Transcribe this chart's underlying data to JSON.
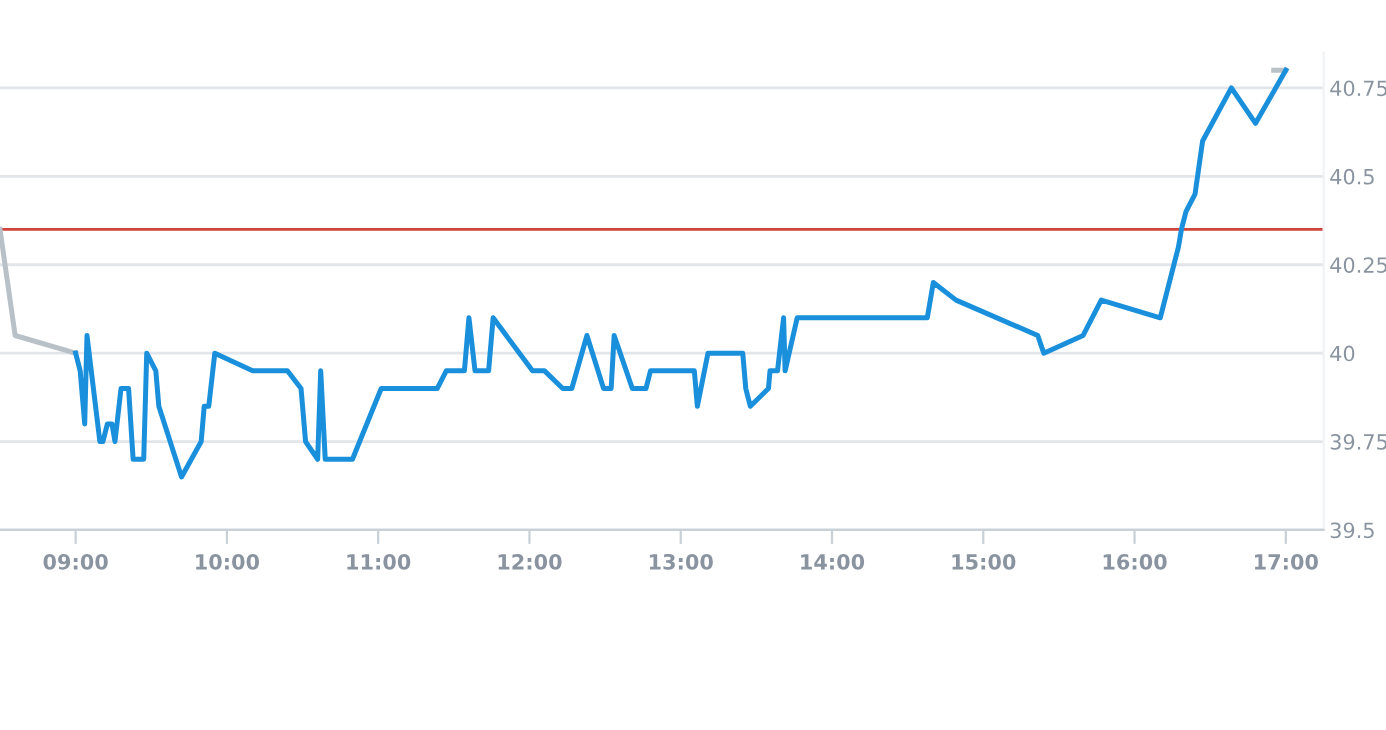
{
  "chart_data": {
    "type": "line",
    "xlim": [
      8.5,
      17.25
    ],
    "ylim": [
      39.5,
      40.85
    ],
    "xticks": [
      {
        "value": 9,
        "label": "09:00"
      },
      {
        "value": 10,
        "label": "10:00"
      },
      {
        "value": 11,
        "label": "11:00"
      },
      {
        "value": 12,
        "label": "12:00"
      },
      {
        "value": 13,
        "label": "13:00"
      },
      {
        "value": 14,
        "label": "14:00"
      },
      {
        "value": 15,
        "label": "15:00"
      },
      {
        "value": 16,
        "label": "16:00"
      },
      {
        "value": 17,
        "label": "17:00"
      }
    ],
    "yticks": [
      39.5,
      39.75,
      40,
      40.25,
      40.5,
      40.75
    ],
    "grid": "y",
    "legend": false,
    "marker": "none",
    "line_style": "solid",
    "ref_lines": [
      {
        "axis": "y",
        "value": 40.35,
        "color": "#d0453a"
      }
    ],
    "series": [
      {
        "color": "#b8c0c8",
        "x": [
          8.5,
          8.6,
          9.0
        ],
        "values": [
          40.35,
          40.05,
          40.0
        ]
      },
      {
        "color": "#b8c0c8",
        "x": [
          16.92,
          17.0
        ],
        "values": [
          40.8,
          40.8
        ]
      },
      {
        "color": "#1a90dc",
        "x": [
          9.0,
          9.03,
          9.06,
          9.075,
          9.16,
          9.18,
          9.21,
          9.24,
          9.26,
          9.3,
          9.35,
          9.38,
          9.45,
          9.47,
          9.53,
          9.55,
          9.7,
          9.83,
          9.85,
          9.88,
          9.92,
          10.17,
          10.4,
          10.49,
          10.52,
          10.6,
          10.62,
          10.65,
          10.83,
          11.02,
          11.39,
          11.45,
          11.57,
          11.6,
          11.64,
          11.73,
          11.76,
          12.02,
          12.1,
          12.22,
          12.28,
          12.38,
          12.49,
          12.54,
          12.56,
          12.68,
          12.77,
          12.8,
          13.09,
          13.11,
          13.18,
          13.41,
          13.43,
          13.46,
          13.58,
          13.59,
          13.64,
          13.68,
          13.69,
          13.77,
          14.63,
          14.67,
          14.82,
          15.36,
          15.4,
          15.66,
          15.78,
          16.17,
          16.29,
          16.31,
          16.34,
          16.4,
          16.45,
          16.64,
          16.8,
          17.0
        ],
        "values": [
          40.0,
          39.95,
          39.8,
          40.05,
          39.75,
          39.75,
          39.8,
          39.8,
          39.75,
          39.9,
          39.9,
          39.7,
          39.7,
          40.0,
          39.95,
          39.85,
          39.65,
          39.75,
          39.85,
          39.85,
          40.0,
          39.95,
          39.95,
          39.9,
          39.75,
          39.7,
          39.95,
          39.7,
          39.7,
          39.9,
          39.9,
          39.95,
          39.95,
          40.1,
          39.95,
          39.95,
          40.1,
          39.95,
          39.95,
          39.9,
          39.9,
          40.05,
          39.9,
          39.9,
          40.05,
          39.9,
          39.9,
          39.95,
          39.95,
          39.85,
          40.0,
          40.0,
          39.9,
          39.85,
          39.9,
          39.95,
          39.95,
          40.1,
          39.95,
          40.1,
          40.1,
          40.2,
          40.15,
          40.05,
          40.0,
          40.05,
          40.15,
          40.1,
          40.3,
          40.35,
          40.4,
          40.45,
          40.6,
          40.75,
          40.65,
          40.8
        ]
      }
    ]
  }
}
